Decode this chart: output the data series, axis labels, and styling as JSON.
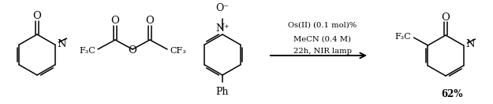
{
  "bg_color": "#ffffff",
  "fig_width": 6.25,
  "fig_height": 1.33,
  "dpi": 100,
  "conditions_line1": "Os(II) (0.1 mol)%",
  "conditions_line2": "MeCN (0.4 M)",
  "conditions_line3": "22h, NIR lamp",
  "yield_text": "62%",
  "line_color": "#000000",
  "text_color": "#000000",
  "font_size_conditions": 7.2,
  "font_size_labels": 8.5,
  "font_size_yield": 8.5
}
